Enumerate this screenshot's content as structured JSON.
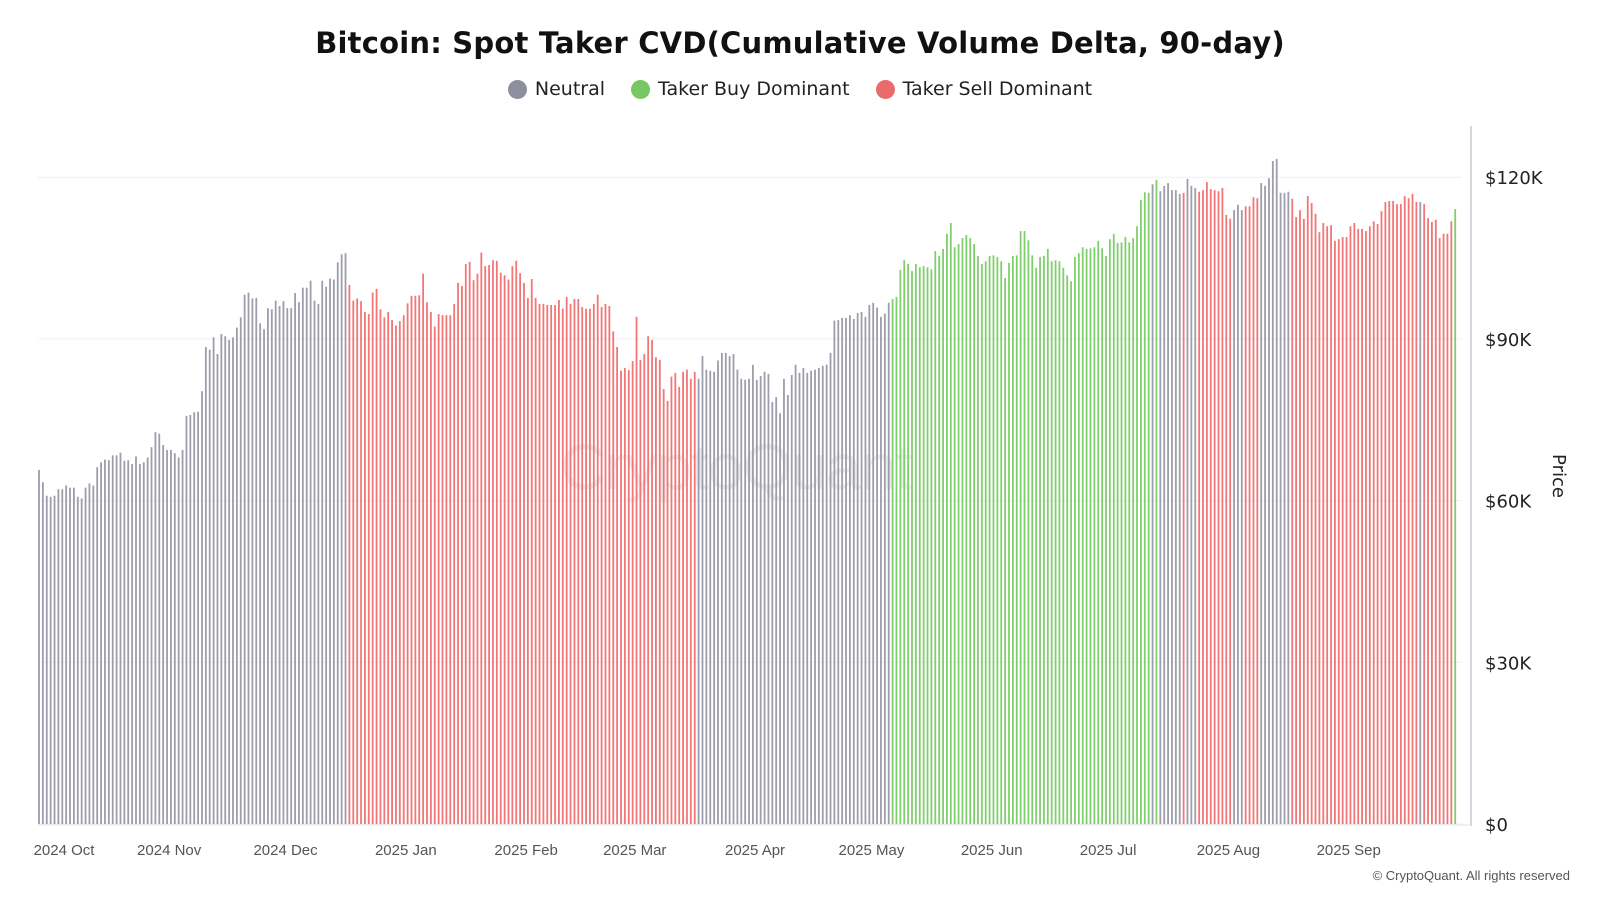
{
  "header": {
    "title": "Bitcoin: Spot Taker CVD(Cumulative Volume Delta, 90-day)"
  },
  "legend": [
    {
      "label": "Neutral",
      "code": "N",
      "color": "#8e8e9c"
    },
    {
      "label": "Taker Buy Dominant",
      "code": "B",
      "color": "#77c763"
    },
    {
      "label": "Taker Sell Dominant",
      "code": "S",
      "color": "#ea6b6b"
    }
  ],
  "bar_colors": {
    "N": "#9d9dab",
    "B": "#7fd06c",
    "S": "#f27676"
  },
  "watermark": "CryptoQuant",
  "footer": {
    "copyright": "© CryptoQuant. All rights reserved"
  },
  "chart_data": {
    "type": "bar",
    "title": "Bitcoin: Spot Taker CVD(Cumulative Volume Delta, 90-day)",
    "x_start": "2024-09-30",
    "x_end": "2025-09-30",
    "x_interval": "daily",
    "xlabel": "",
    "ylabel": "Price",
    "y_unit": "USD thousands",
    "ylim": [
      0,
      130
    ],
    "y_axis_side": "right",
    "y_ticks": [
      0,
      30,
      60,
      90,
      120
    ],
    "y_tick_labels": [
      "$0",
      "$30K",
      "$60K",
      "$90K",
      "$120K"
    ],
    "x_ticks": [
      {
        "date": "2024-10-01",
        "label": "2024 Oct"
      },
      {
        "date": "2024-11-01",
        "label": "2024 Nov"
      },
      {
        "date": "2024-12-01",
        "label": "2024 Dec"
      },
      {
        "date": "2025-01-01",
        "label": "2025 Jan"
      },
      {
        "date": "2025-02-01",
        "label": "2025 Feb"
      },
      {
        "date": "2025-03-01",
        "label": "2025 Mar"
      },
      {
        "date": "2025-04-01",
        "label": "2025 Apr"
      },
      {
        "date": "2025-05-01",
        "label": "2025 May"
      },
      {
        "date": "2025-06-01",
        "label": "2025 Jun"
      },
      {
        "date": "2025-07-01",
        "label": "2025 Jul"
      },
      {
        "date": "2025-08-01",
        "label": "2025 Aug"
      },
      {
        "date": "2025-09-01",
        "label": "2025 Sep"
      }
    ],
    "grid": true,
    "legend_position": "top",
    "values": [
      65.7,
      63.4,
      60.9,
      60.7,
      60.9,
      62.1,
      62.1,
      62.8,
      62.4,
      62.4,
      60.7,
      60.4,
      62.4,
      63.2,
      62.8,
      66.2,
      67.1,
      67.6,
      67.5,
      68.4,
      68.4,
      68.9,
      67.4,
      67.5,
      66.8,
      68.2,
      66.8,
      67.1,
      68.0,
      69.9,
      72.7,
      72.4,
      70.3,
      69.4,
      69.4,
      68.8,
      68.0,
      69.4,
      75.7,
      75.9,
      76.4,
      76.5,
      80.3,
      88.5,
      88.0,
      90.3,
      87.2,
      90.9,
      90.5,
      89.8,
      90.3,
      92.1,
      94.0,
      98.2,
      98.6,
      97.5,
      97.6,
      92.9,
      91.8,
      95.7,
      95.5,
      97.1,
      96.1,
      97.0,
      95.7,
      95.7,
      98.5,
      96.8,
      99.5,
      99.5,
      100.8,
      97.1,
      96.5,
      100.8,
      99.7,
      101.2,
      101.0,
      104.2,
      105.7,
      105.9,
      100.0,
      97.1,
      97.5,
      97.0,
      95.0,
      94.6,
      98.6,
      99.3,
      95.5,
      94.0,
      95.0,
      93.5,
      92.5,
      93.3,
      94.4,
      96.6,
      98.0,
      98.0,
      98.1,
      102.1,
      96.8,
      95.0,
      92.3,
      94.6,
      94.4,
      94.4,
      94.4,
      96.5,
      100.4,
      99.8,
      103.9,
      104.3,
      100.9,
      102.1,
      106.0,
      103.5,
      103.7,
      104.6,
      104.5,
      102.3,
      101.8,
      101.0,
      103.5,
      104.5,
      102.2,
      100.4,
      97.6,
      101.1,
      97.6,
      96.5,
      96.5,
      96.3,
      96.3,
      96.3,
      97.2,
      95.6,
      97.8,
      96.5,
      97.4,
      97.4,
      95.9,
      95.6,
      95.6,
      96.5,
      98.2,
      95.9,
      96.5,
      96.1,
      91.4,
      88.5,
      84.1,
      84.6,
      84.2,
      85.9,
      94.1,
      86.1,
      87.2,
      90.5,
      89.8,
      86.6,
      86.1,
      80.7,
      78.5,
      83.0,
      83.7,
      81.1,
      83.9,
      84.3,
      82.6,
      83.9,
      82.6,
      86.8,
      84.3,
      84.1,
      83.9,
      86.0,
      87.4,
      87.4,
      86.8,
      87.2,
      84.3,
      82.6,
      82.4,
      82.6,
      85.2,
      82.4,
      83.1,
      83.9,
      83.5,
      78.3,
      79.2,
      76.2,
      82.6,
      79.6,
      83.3,
      85.2,
      83.7,
      84.6,
      83.7,
      84.1,
      84.3,
      84.6,
      85.0,
      85.2,
      87.4,
      93.4,
      93.5,
      93.9,
      93.9,
      94.4,
      93.7,
      94.8,
      95.0,
      94.1,
      96.3,
      96.7,
      95.8,
      94.1,
      94.7,
      96.7,
      97.4,
      97.8,
      102.8,
      104.6,
      103.9,
      102.6,
      103.9,
      103.3,
      103.5,
      103.3,
      102.9,
      106.3,
      105.4,
      106.7,
      109.5,
      111.5,
      107.0,
      107.6,
      108.7,
      109.3,
      108.7,
      107.6,
      105.4,
      103.9,
      104.4,
      105.4,
      105.5,
      105.2,
      104.4,
      101.3,
      104.1,
      105.4,
      105.5,
      110.0,
      110.0,
      108.3,
      105.5,
      103.2,
      105.2,
      105.4,
      106.7,
      104.4,
      104.6,
      104.4,
      103.2,
      101.8,
      100.7,
      105.2,
      105.9,
      107.0,
      106.7,
      106.8,
      107.0,
      108.2,
      106.8,
      105.4,
      108.5,
      109.5,
      107.8,
      107.9,
      108.9,
      107.9,
      108.7,
      110.9,
      115.8,
      117.2,
      117.1,
      118.7,
      119.5,
      117.4,
      118.4,
      118.9,
      117.6,
      117.6,
      116.9,
      117.1,
      119.7,
      118.4,
      118.0,
      117.3,
      117.6,
      119.1,
      117.8,
      117.6,
      117.4,
      118.0,
      113.0,
      112.3,
      113.9,
      114.9,
      113.9,
      114.6,
      114.6,
      116.3,
      116.1,
      118.9,
      118.4,
      119.8,
      123.0,
      123.4,
      117.1,
      117.1,
      117.3,
      116.0,
      112.6,
      113.9,
      112.3,
      116.5,
      115.2,
      113.2,
      109.8,
      111.5,
      110.9,
      111.1,
      108.2,
      108.5,
      108.9,
      108.9,
      110.9,
      111.5,
      110.4,
      110.4,
      110.0,
      110.9,
      111.8,
      111.3,
      113.7,
      115.4,
      115.6,
      115.6,
      115.0,
      115.0,
      116.5,
      116.1,
      116.9,
      115.4,
      115.4,
      115.0,
      112.4,
      111.7,
      112.1,
      108.7,
      109.5,
      109.5,
      111.8,
      114.1
    ],
    "dominance_periods": [
      {
        "from": "2024-09-30",
        "to": "2024-12-18",
        "class": "Neutral"
      },
      {
        "from": "2024-12-19",
        "to": "2025-03-18",
        "class": "Taker Sell Dominant"
      },
      {
        "from": "2025-03-19",
        "to": "2025-05-07",
        "class": "Neutral"
      },
      {
        "from": "2025-05-08",
        "to": "2025-07-13",
        "class": "Taker Buy Dominant"
      },
      {
        "from": "2025-07-14",
        "to": "2025-07-14",
        "class": "Neutral"
      },
      {
        "from": "2025-07-15",
        "to": "2025-07-15",
        "class": "Taker Buy Dominant"
      },
      {
        "from": "2025-07-16",
        "to": "2025-07-21",
        "class": "Neutral"
      },
      {
        "from": "2025-07-22",
        "to": "2025-07-22",
        "class": "Taker Sell Dominant"
      },
      {
        "from": "2025-07-23",
        "to": "2025-07-25",
        "class": "Neutral"
      },
      {
        "from": "2025-07-26",
        "to": "2025-08-03",
        "class": "Taker Sell Dominant"
      },
      {
        "from": "2025-08-04",
        "to": "2025-08-06",
        "class": "Neutral"
      },
      {
        "from": "2025-08-07",
        "to": "2025-08-10",
        "class": "Taker Sell Dominant"
      },
      {
        "from": "2025-08-11",
        "to": "2025-08-18",
        "class": "Neutral"
      },
      {
        "from": "2025-08-19",
        "to": "2025-09-20",
        "class": "Taker Sell Dominant"
      },
      {
        "from": "2025-09-21",
        "to": "2025-09-21",
        "class": "Neutral"
      },
      {
        "from": "2025-09-22",
        "to": "2025-09-29",
        "class": "Taker Sell Dominant"
      },
      {
        "from": "2025-09-30",
        "to": "2025-09-30",
        "class": "Taker Buy Dominant"
      }
    ]
  }
}
